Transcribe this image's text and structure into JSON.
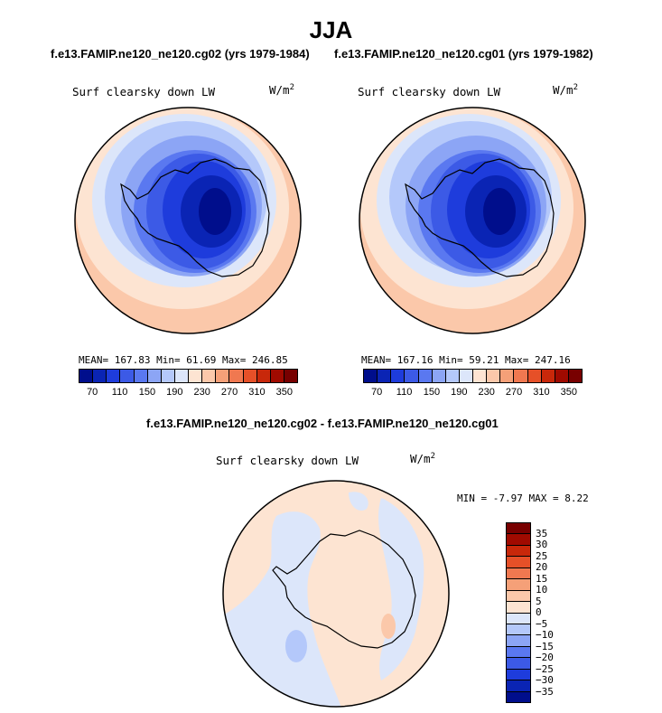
{
  "figure": {
    "title": "JJA",
    "left_case_title": "f.e13.FAMIP.ne120_ne120.cg02 (yrs 1979-1984)",
    "right_case_title": "f.e13.FAMIP.ne120_ne120.cg01 (yrs 1979-1982)",
    "diff_title": "f.e13.FAMIP.ne120_ne120.cg02 - f.e13.FAMIP.ne120_ne120.cg01"
  },
  "panels": {
    "left": {
      "variable": "Surf clearsky down LW",
      "units": "W/m",
      "units_sup": "2",
      "stats": "MEAN= 167.83  Min=  61.69  Max= 246.85"
    },
    "right": {
      "variable": "Surf clearsky down LW",
      "units": "W/m",
      "units_sup": "2",
      "stats": "MEAN= 167.16  Min=  59.21  Max= 247.16"
    },
    "diff": {
      "variable": "Surf clearsky down LW",
      "units": "W/m",
      "units_sup": "2",
      "stats": "MIN =  -7.97 MAX =   8.22"
    }
  },
  "abs_colorbar": {
    "colors": [
      "#000e8c",
      "#0a24b4",
      "#1e3cdc",
      "#3c5ae6",
      "#5a78f0",
      "#8ca5f5",
      "#b4c8fa",
      "#dce6fa",
      "#fde4d2",
      "#fbc8aa",
      "#f5a078",
      "#f07850",
      "#e65028",
      "#c8280a",
      "#a00a00",
      "#780000"
    ],
    "ticks": [
      "70",
      "110",
      "150",
      "190",
      "230",
      "270",
      "310",
      "350"
    ]
  },
  "diff_colorbar": {
    "colors": [
      "#780000",
      "#a00a00",
      "#c8280a",
      "#e65028",
      "#f07850",
      "#f5a078",
      "#fbc8aa",
      "#fde4d2",
      "#dce6fa",
      "#b4c8fa",
      "#8ca5f5",
      "#5a78f0",
      "#3c5ae6",
      "#1e3cdc",
      "#0a24b4",
      "#000e8c"
    ],
    "ticks": [
      "35",
      "30",
      "25",
      "20",
      "15",
      "10",
      "5",
      "0",
      "−5",
      "−10",
      "−15",
      "−20",
      "−25",
      "−30",
      "−35"
    ]
  }
}
